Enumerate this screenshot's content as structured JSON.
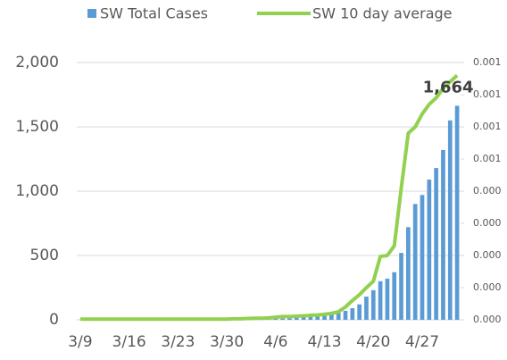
{
  "chart_data": {
    "type": "bar-line",
    "categories": [
      "3/9",
      null,
      null,
      null,
      null,
      null,
      null,
      "3/16",
      null,
      null,
      null,
      null,
      null,
      null,
      "3/23",
      null,
      null,
      null,
      null,
      null,
      null,
      "3/30",
      null,
      null,
      null,
      null,
      null,
      null,
      "4/6",
      null,
      null,
      null,
      null,
      null,
      null,
      "4/13",
      null,
      null,
      null,
      null,
      null,
      null,
      "4/20",
      null,
      null,
      null,
      null,
      null,
      null,
      "4/27",
      null,
      null,
      null,
      null,
      null
    ],
    "series": [
      {
        "name": "SW Total Cases",
        "color": "#5b9bd5",
        "type": "bar",
        "values": [
          1,
          1,
          1,
          1,
          1,
          1,
          1,
          1,
          1,
          1,
          1,
          1,
          1,
          1,
          2,
          2,
          2,
          2,
          2,
          2,
          3,
          3,
          4,
          4,
          5,
          5,
          6,
          7,
          8,
          10,
          12,
          15,
          20,
          25,
          30,
          35,
          45,
          55,
          70,
          90,
          120,
          180,
          230,
          300,
          320,
          370,
          520,
          720,
          900,
          970,
          1090,
          1180,
          1320,
          1550,
          1664
        ],
        "value_labels": [
          null,
          null,
          null,
          null,
          null,
          null,
          null,
          null,
          null,
          null,
          null,
          null,
          null,
          null,
          null,
          null,
          null,
          null,
          null,
          null,
          null,
          null,
          null,
          null,
          null,
          null,
          null,
          null,
          null,
          null,
          null,
          null,
          null,
          null,
          null,
          null,
          null,
          null,
          null,
          null,
          null,
          null,
          null,
          null,
          null,
          null,
          null,
          null,
          null,
          null,
          null,
          null,
          null,
          null,
          "1,664"
        ]
      },
      {
        "name": "SW 10 day average",
        "color": "#92d050",
        "type": "line",
        "axis": "y2",
        "values": [
          2e-06,
          2e-06,
          2e-06,
          2e-06,
          2e-06,
          2e-06,
          2e-06,
          2e-06,
          2e-06,
          2e-06,
          2e-06,
          2e-06,
          2e-06,
          2e-06,
          2e-06,
          2e-06,
          2e-06,
          2e-06,
          2e-06,
          2e-06,
          2e-06,
          2e-06,
          3e-06,
          3e-06,
          4e-06,
          5e-06,
          5e-06,
          6e-06,
          8e-06,
          1e-05,
          1e-05,
          1.1e-05,
          1.2e-05,
          1.4e-05,
          1.5e-05,
          1.7e-05,
          2e-05,
          2.5e-05,
          4e-05,
          6e-05,
          7.8e-05,
          0.0001,
          0.00012,
          0.000197,
          0.0002,
          0.00023,
          0.00041,
          0.00058,
          0.0006,
          0.00064,
          0.00067,
          0.00069,
          0.00072,
          0.00074,
          0.00076
        ]
      }
    ],
    "ylim": [
      0,
      2000
    ],
    "yticks": [
      0,
      500,
      {
        "value": 1000,
        "label": "1,000"
      },
      {
        "value": 1500,
        "label": "1,500"
      },
      {
        "value": 2000,
        "label": "2,000"
      }
    ],
    "y2lim": [
      0,
      0.0008
    ],
    "y2ticks": [
      {
        "value": 0,
        "label": "0.000"
      },
      {
        "value": 0.0001,
        "label": "0.000"
      },
      {
        "value": 0.0002,
        "label": "0.000"
      },
      {
        "value": 0.0003,
        "label": "0.000"
      },
      {
        "value": 0.0004,
        "label": "0.000"
      },
      {
        "value": 0.0005,
        "label": "0.001"
      },
      {
        "value": 0.0006,
        "label": "0.001"
      },
      {
        "value": 0.0007,
        "label": "0.001"
      },
      {
        "value": 0.0008,
        "label": "0.001"
      }
    ],
    "grid": true,
    "legend": "top"
  }
}
